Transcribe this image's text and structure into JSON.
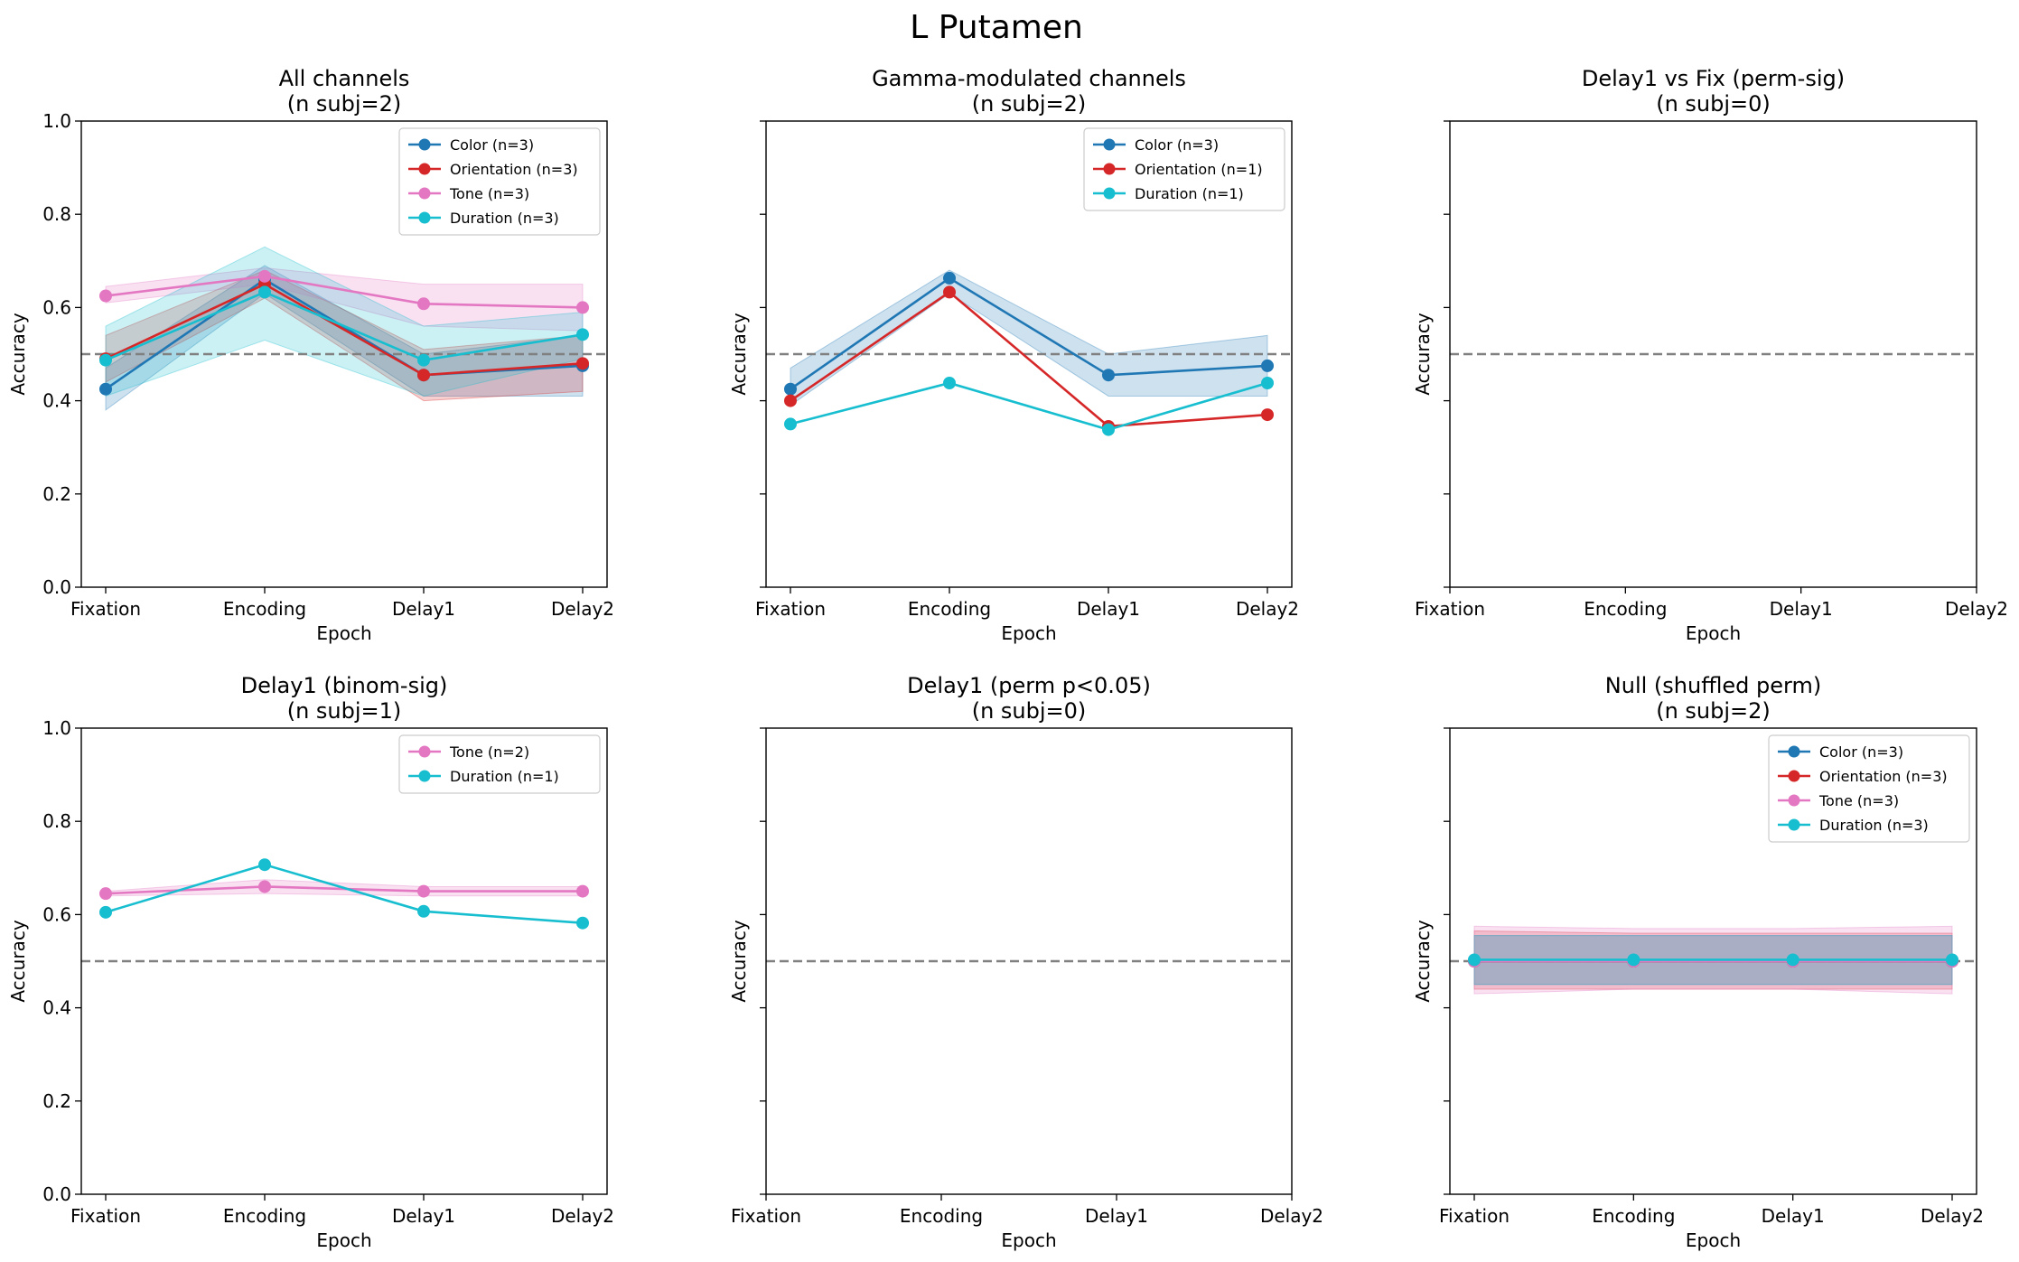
{
  "figure_title": "L Putamen",
  "colors": {
    "Color": "#1f77b4",
    "Orientation": "#d62728",
    "Tone": "#e377c2",
    "Duration": "#17becf",
    "chance": "#808080"
  },
  "chart_data": [
    {
      "type": "line",
      "title_lines": [
        "All channels",
        "(n subj=2)"
      ],
      "xlabel": "Epoch",
      "ylabel": "Accuracy",
      "categories": [
        "Fixation",
        "Encoding",
        "Delay1",
        "Delay2"
      ],
      "ylim": [
        0,
        1.0
      ],
      "yticks": [
        "0.0",
        "0.2",
        "0.4",
        "0.6",
        "0.8",
        "1.0"
      ],
      "show_ytick_labels": true,
      "chance": 0.5,
      "legend": "top-right",
      "series": [
        {
          "name": "Color (n=3)",
          "key": "Color",
          "values": [
            0.425,
            0.66,
            0.455,
            0.475
          ],
          "lower": [
            0.38,
            0.63,
            0.41,
            0.41
          ],
          "upper": [
            0.47,
            0.69,
            0.5,
            0.54
          ]
        },
        {
          "name": "Orientation (n=3)",
          "key": "Orientation",
          "values": [
            0.49,
            0.65,
            0.455,
            0.48
          ],
          "lower": [
            0.44,
            0.62,
            0.4,
            0.42
          ],
          "upper": [
            0.54,
            0.68,
            0.51,
            0.54
          ]
        },
        {
          "name": "Tone (n=3)",
          "key": "Tone",
          "values": [
            0.625,
            0.667,
            0.608,
            0.6
          ],
          "lower": [
            0.61,
            0.65,
            0.56,
            0.55
          ],
          "upper": [
            0.645,
            0.685,
            0.65,
            0.65
          ]
        },
        {
          "name": "Duration (n=3)",
          "key": "Duration",
          "values": [
            0.487,
            0.633,
            0.487,
            0.542
          ],
          "lower": [
            0.41,
            0.53,
            0.41,
            0.49
          ],
          "upper": [
            0.56,
            0.73,
            0.56,
            0.59
          ]
        }
      ]
    },
    {
      "type": "line",
      "title_lines": [
        "Gamma-modulated channels",
        "(n subj=2)"
      ],
      "xlabel": "Epoch",
      "ylabel": "Accuracy",
      "categories": [
        "Fixation",
        "Encoding",
        "Delay1",
        "Delay2"
      ],
      "ylim": [
        0,
        1.0
      ],
      "yticks": [
        "0.0",
        "0.2",
        "0.4",
        "0.6",
        "0.8",
        "1.0"
      ],
      "show_ytick_labels": false,
      "chance": 0.5,
      "legend": "top-right",
      "series": [
        {
          "name": "Color (n=3)",
          "key": "Color",
          "values": [
            0.425,
            0.663,
            0.455,
            0.475
          ],
          "lower": [
            0.39,
            0.63,
            0.41,
            0.41
          ],
          "upper": [
            0.47,
            0.68,
            0.5,
            0.54
          ]
        },
        {
          "name": "Orientation (n=1)",
          "key": "Orientation",
          "values": [
            0.4,
            0.633,
            0.345,
            0.37
          ]
        },
        {
          "name": "Duration (n=1)",
          "key": "Duration",
          "values": [
            0.35,
            0.438,
            0.338,
            0.438
          ]
        }
      ]
    },
    {
      "type": "line",
      "title_lines": [
        "Delay1 vs Fix (perm-sig)",
        "(n subj=0)"
      ],
      "xlabel": "Epoch",
      "ylabel": "Accuracy",
      "categories": [
        "Fixation",
        "Encoding",
        "Delay1",
        "Delay2"
      ],
      "ylim": [
        0,
        1.0
      ],
      "yticks": [
        "0.0",
        "0.2",
        "0.4",
        "0.6",
        "0.8",
        "1.0"
      ],
      "show_ytick_labels": false,
      "chance": 0.5,
      "xmode": "edges",
      "legend": "",
      "series": []
    },
    {
      "type": "line",
      "title_lines": [
        "Delay1 (binom-sig)",
        "(n subj=1)"
      ],
      "xlabel": "Epoch",
      "ylabel": "Accuracy",
      "categories": [
        "Fixation",
        "Encoding",
        "Delay1",
        "Delay2"
      ],
      "ylim": [
        0,
        1.0
      ],
      "yticks": [
        "0.0",
        "0.2",
        "0.4",
        "0.6",
        "0.8",
        "1.0"
      ],
      "show_ytick_labels": true,
      "chance": 0.5,
      "legend": "top-right",
      "series": [
        {
          "name": "Tone (n=2)",
          "key": "Tone",
          "values": [
            0.645,
            0.66,
            0.65,
            0.65
          ],
          "lower": [
            0.64,
            0.645,
            0.64,
            0.64
          ],
          "upper": [
            0.65,
            0.675,
            0.66,
            0.66
          ]
        },
        {
          "name": "Duration (n=1)",
          "key": "Duration",
          "values": [
            0.605,
            0.707,
            0.607,
            0.582
          ]
        }
      ]
    },
    {
      "type": "line",
      "title_lines": [
        "Delay1 (perm p<0.05)",
        "(n subj=0)"
      ],
      "xlabel": "Epoch",
      "ylabel": "Accuracy",
      "categories": [
        "Fixation",
        "Encoding",
        "Delay1",
        "Delay2"
      ],
      "ylim": [
        0,
        1.0
      ],
      "yticks": [
        "0.0",
        "0.2",
        "0.4",
        "0.6",
        "0.8",
        "1.0"
      ],
      "show_ytick_labels": false,
      "chance": 0.5,
      "xmode": "edges",
      "legend": "",
      "series": []
    },
    {
      "type": "line",
      "title_lines": [
        "Null (shuffled perm)",
        "(n subj=2)"
      ],
      "xlabel": "Epoch",
      "ylabel": "Accuracy",
      "categories": [
        "Fixation",
        "Encoding",
        "Delay1",
        "Delay2"
      ],
      "ylim": [
        0,
        1.0
      ],
      "yticks": [
        "0.0",
        "0.2",
        "0.4",
        "0.6",
        "0.8",
        "1.0"
      ],
      "show_ytick_labels": false,
      "chance": 0.5,
      "legend": "top-right",
      "series": [
        {
          "name": "Color (n=3)",
          "key": "Color",
          "values": [
            0.5,
            0.5,
            0.5,
            0.5
          ],
          "lower": [
            0.45,
            0.45,
            0.45,
            0.45
          ],
          "upper": [
            0.555,
            0.555,
            0.555,
            0.555
          ]
        },
        {
          "name": "Orientation (n=3)",
          "key": "Orientation",
          "values": [
            0.5,
            0.5,
            0.5,
            0.5
          ],
          "lower": [
            0.44,
            0.44,
            0.44,
            0.44
          ],
          "upper": [
            0.565,
            0.56,
            0.56,
            0.56
          ]
        },
        {
          "name": "Tone (n=3)",
          "key": "Tone",
          "values": [
            0.5,
            0.5,
            0.5,
            0.5
          ],
          "lower": [
            0.43,
            0.44,
            0.44,
            0.43
          ],
          "upper": [
            0.575,
            0.57,
            0.57,
            0.575
          ]
        },
        {
          "name": "Duration (n=3)",
          "key": "Duration",
          "values": [
            0.503,
            0.503,
            0.503,
            0.503
          ],
          "lower": [
            0.45,
            0.45,
            0.45,
            0.45
          ],
          "upper": [
            0.555,
            0.555,
            0.555,
            0.555
          ]
        }
      ]
    }
  ]
}
